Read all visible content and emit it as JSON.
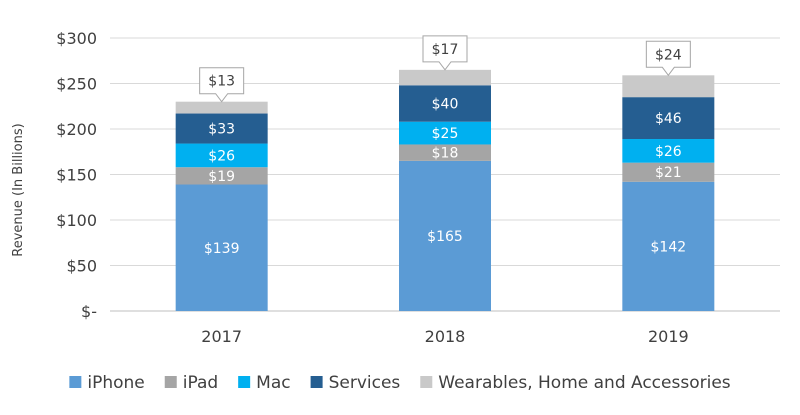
{
  "chart_data": {
    "type": "bar",
    "stacked": true,
    "title": "",
    "xlabel": "",
    "ylabel": "Revenue (In Billions)",
    "ylim": [
      0,
      300
    ],
    "yticks": [
      {
        "value": 0,
        "label": "$-"
      },
      {
        "value": 50,
        "label": "$50"
      },
      {
        "value": 100,
        "label": "$100"
      },
      {
        "value": 150,
        "label": "$150"
      },
      {
        "value": 200,
        "label": "$200"
      },
      {
        "value": 250,
        "label": "$250"
      },
      {
        "value": 300,
        "label": "$300"
      }
    ],
    "grid": true,
    "legend_position": "bottom",
    "categories": [
      "2017",
      "2018",
      "2019"
    ],
    "series": [
      {
        "name": "iPhone",
        "color": "#5B9BD5",
        "label_color": "#ffffff",
        "values": [
          139,
          165,
          142
        ],
        "labels": [
          "$139",
          "$165",
          "$142"
        ]
      },
      {
        "name": "iPad",
        "color": "#A5A5A5",
        "label_color": "#ffffff",
        "values": [
          19,
          18,
          21
        ],
        "labels": [
          "$19",
          "$18",
          "$21"
        ]
      },
      {
        "name": "Mac",
        "color": "#00B0F0",
        "label_color": "#ffffff",
        "values": [
          26,
          25,
          26
        ],
        "labels": [
          "$26",
          "$25",
          "$26"
        ]
      },
      {
        "name": "Services",
        "color": "#255E91",
        "label_color": "#ffffff",
        "values": [
          33,
          40,
          46
        ],
        "labels": [
          "$33",
          "$40",
          "$46"
        ]
      },
      {
        "name": "Wearables, Home and Accessories",
        "color": "#C9C9C9",
        "label_color": "#404040",
        "values": [
          13,
          17,
          24
        ],
        "labels": [
          "$13",
          "$17",
          "$24"
        ],
        "label_style": "callout"
      }
    ]
  }
}
